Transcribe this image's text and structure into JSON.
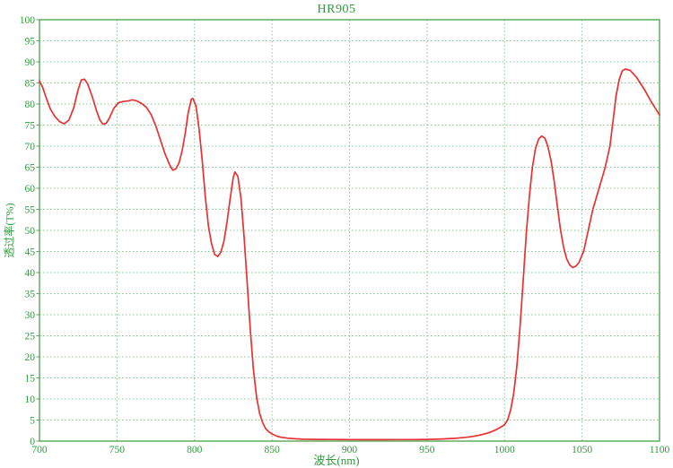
{
  "colors": {
    "axis_border": "#55a855",
    "grid": "#8fc29a",
    "text": "#2e9b3c",
    "curve": "#e63232",
    "background": "#ffffff"
  },
  "chart_data": {
    "type": "line",
    "title": "HR905",
    "xlabel": "波长(nm)",
    "ylabel": "透过率(T%)",
    "xlim": [
      700,
      1100
    ],
    "ylim": [
      0,
      100
    ],
    "x_ticks": [
      700,
      750,
      800,
      850,
      900,
      950,
      1000,
      1050,
      1100
    ],
    "y_ticks": [
      0,
      5,
      10,
      15,
      20,
      25,
      30,
      35,
      40,
      45,
      50,
      55,
      60,
      65,
      70,
      75,
      80,
      85,
      90,
      95,
      100
    ],
    "grid": "dotted",
    "legend": "none",
    "series": [
      {
        "name": "transmission",
        "color": "#e63232",
        "points": [
          [
            700,
            85.5
          ],
          [
            702,
            84.0
          ],
          [
            704,
            81.8
          ],
          [
            707,
            78.8
          ],
          [
            710,
            77.0
          ],
          [
            713,
            75.8
          ],
          [
            716,
            75.3
          ],
          [
            719,
            76.2
          ],
          [
            722,
            79.0
          ],
          [
            725,
            83.5
          ],
          [
            727,
            85.7
          ],
          [
            729,
            85.9
          ],
          [
            731,
            84.8
          ],
          [
            734,
            81.8
          ],
          [
            737,
            78.2
          ],
          [
            739,
            76.2
          ],
          [
            741,
            75.2
          ],
          [
            743,
            75.4
          ],
          [
            745,
            76.6
          ],
          [
            748,
            79.0
          ],
          [
            751,
            80.3
          ],
          [
            754,
            80.6
          ],
          [
            757,
            80.7
          ],
          [
            760,
            81.0
          ],
          [
            763,
            80.7
          ],
          [
            766,
            80.1
          ],
          [
            769,
            79.2
          ],
          [
            772,
            77.5
          ],
          [
            775,
            74.8
          ],
          [
            778,
            71.5
          ],
          [
            781,
            68.2
          ],
          [
            784,
            65.5
          ],
          [
            786,
            64.3
          ],
          [
            788,
            64.6
          ],
          [
            790,
            66.0
          ],
          [
            792,
            68.8
          ],
          [
            794,
            73.0
          ],
          [
            796,
            78.0
          ],
          [
            798,
            81.2
          ],
          [
            799,
            81.3
          ],
          [
            801,
            79.5
          ],
          [
            803,
            74.0
          ],
          [
            805,
            66.5
          ],
          [
            807,
            58.0
          ],
          [
            809,
            51.0
          ],
          [
            811,
            46.8
          ],
          [
            813,
            44.3
          ],
          [
            815,
            43.8
          ],
          [
            817,
            44.8
          ],
          [
            819,
            47.5
          ],
          [
            821,
            52.0
          ],
          [
            823,
            57.5
          ],
          [
            825,
            62.5
          ],
          [
            826,
            63.9
          ],
          [
            828,
            62.8
          ],
          [
            830,
            57.5
          ],
          [
            832,
            48.5
          ],
          [
            834,
            37.5
          ],
          [
            836,
            26.5
          ],
          [
            838,
            17.0
          ],
          [
            840,
            10.5
          ],
          [
            842,
            6.6
          ],
          [
            844,
            4.3
          ],
          [
            846,
            2.9
          ],
          [
            848,
            2.2
          ],
          [
            850,
            1.7
          ],
          [
            853,
            1.2
          ],
          [
            856,
            0.9
          ],
          [
            860,
            0.7
          ],
          [
            865,
            0.55
          ],
          [
            870,
            0.45
          ],
          [
            880,
            0.4
          ],
          [
            890,
            0.38
          ],
          [
            900,
            0.36
          ],
          [
            910,
            0.35
          ],
          [
            920,
            0.35
          ],
          [
            930,
            0.36
          ],
          [
            940,
            0.37
          ],
          [
            950,
            0.4
          ],
          [
            960,
            0.5
          ],
          [
            968,
            0.65
          ],
          [
            975,
            0.9
          ],
          [
            981,
            1.2
          ],
          [
            986,
            1.6
          ],
          [
            990,
            2.0
          ],
          [
            994,
            2.6
          ],
          [
            997,
            3.2
          ],
          [
            1000,
            3.9
          ],
          [
            1002,
            5.0
          ],
          [
            1004,
            7.5
          ],
          [
            1006,
            11.5
          ],
          [
            1008,
            18.0
          ],
          [
            1010,
            27.0
          ],
          [
            1012,
            38.0
          ],
          [
            1014,
            49.0
          ],
          [
            1016,
            58.0
          ],
          [
            1018,
            65.0
          ],
          [
            1020,
            69.5
          ],
          [
            1022,
            71.7
          ],
          [
            1024,
            72.4
          ],
          [
            1026,
            71.9
          ],
          [
            1028,
            69.9
          ],
          [
            1030,
            66.5
          ],
          [
            1032,
            61.8
          ],
          [
            1034,
            56.0
          ],
          [
            1036,
            50.5
          ],
          [
            1038,
            46.2
          ],
          [
            1040,
            43.3
          ],
          [
            1042,
            41.8
          ],
          [
            1044,
            41.2
          ],
          [
            1046,
            41.5
          ],
          [
            1048,
            42.4
          ],
          [
            1051,
            45.0
          ],
          [
            1054,
            50.0
          ],
          [
            1057,
            55.0
          ],
          [
            1061,
            60.0
          ],
          [
            1065,
            65.0
          ],
          [
            1068,
            70.0
          ],
          [
            1070,
            76.0
          ],
          [
            1072,
            82.0
          ],
          [
            1074,
            85.8
          ],
          [
            1076,
            87.9
          ],
          [
            1078,
            88.3
          ],
          [
            1081,
            88.0
          ],
          [
            1085,
            86.4
          ],
          [
            1090,
            83.6
          ],
          [
            1095,
            80.3
          ],
          [
            1100,
            77.4
          ]
        ]
      }
    ]
  }
}
